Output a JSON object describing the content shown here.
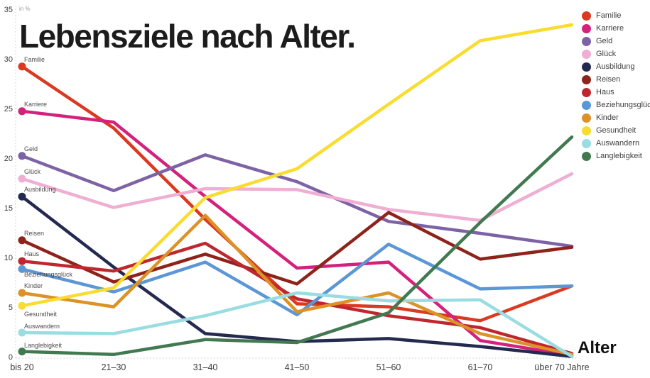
{
  "title": "Lebensziele nach Alter.",
  "y_axis_unit_label": "in %",
  "x_axis_title": "Alter",
  "chart_data": {
    "type": "line",
    "title": "Lebensziele nach Alter.",
    "unit": "in %",
    "categories": [
      "bis 20",
      "21–30",
      "31–40",
      "41–50",
      "51–60",
      "61–70",
      "über 70 Jahre"
    ],
    "y_ticks": [
      0,
      5,
      10,
      15,
      20,
      25,
      30,
      35
    ],
    "ylim": [
      0,
      35
    ],
    "grid": "dotted-axes-only",
    "legend_position": "top-right",
    "series": [
      {
        "id": "familie",
        "name": "Familie",
        "color": "#d93a21",
        "values": [
          29.3,
          23.1,
          13.9,
          5.4,
          5.1,
          3.7,
          7.2
        ]
      },
      {
        "id": "karriere",
        "name": "Karriere",
        "color": "#d4217c",
        "values": [
          24.8,
          23.7,
          16.2,
          9.0,
          9.6,
          1.7,
          0.2
        ]
      },
      {
        "id": "geld",
        "name": "Geld",
        "color": "#7d63a5",
        "values": [
          20.3,
          16.8,
          20.4,
          17.7,
          13.7,
          12.5,
          11.2
        ]
      },
      {
        "id": "glueck",
        "name": "Glück",
        "color": "#efaed2",
        "values": [
          18.0,
          15.1,
          17.0,
          16.9,
          14.9,
          13.8,
          18.5
        ]
      },
      {
        "id": "ausbildung",
        "name": "Ausbildung",
        "color": "#24294f",
        "values": [
          16.2,
          9.1,
          2.4,
          1.6,
          1.9,
          1.1,
          0.1
        ]
      },
      {
        "id": "reisen",
        "name": "Reisen",
        "color": "#8e231a",
        "values": [
          11.8,
          7.6,
          10.4,
          7.4,
          14.6,
          9.9,
          11.1
        ]
      },
      {
        "id": "haus",
        "name": "Haus",
        "color": "#bf272e",
        "values": [
          9.7,
          8.7,
          11.5,
          5.9,
          4.2,
          3.0,
          0.4
        ]
      },
      {
        "id": "beziehungsglueck",
        "name": "Beziehungsglück",
        "color": "#5b97d6",
        "values": [
          8.9,
          6.6,
          9.6,
          4.3,
          11.4,
          6.9,
          7.2
        ]
      },
      {
        "id": "kinder",
        "name": "Kinder",
        "color": "#dc9226",
        "values": [
          6.5,
          5.1,
          14.3,
          4.6,
          6.5,
          2.4,
          0.3
        ]
      },
      {
        "id": "gesundheit",
        "name": "Gesundheit",
        "color": "#f9dc30",
        "values": [
          5.2,
          7.0,
          16.1,
          19.0,
          25.5,
          31.9,
          33.5
        ]
      },
      {
        "id": "auswandern",
        "name": "Auswandern",
        "color": "#99dde2",
        "values": [
          2.5,
          2.4,
          4.2,
          6.5,
          5.7,
          5.8,
          0.1
        ]
      },
      {
        "id": "langlebigkeit",
        "name": "Langlebigkeit",
        "color": "#417950",
        "values": [
          0.6,
          0.3,
          1.8,
          1.5,
          4.5,
          13.6,
          22.2
        ]
      }
    ]
  }
}
